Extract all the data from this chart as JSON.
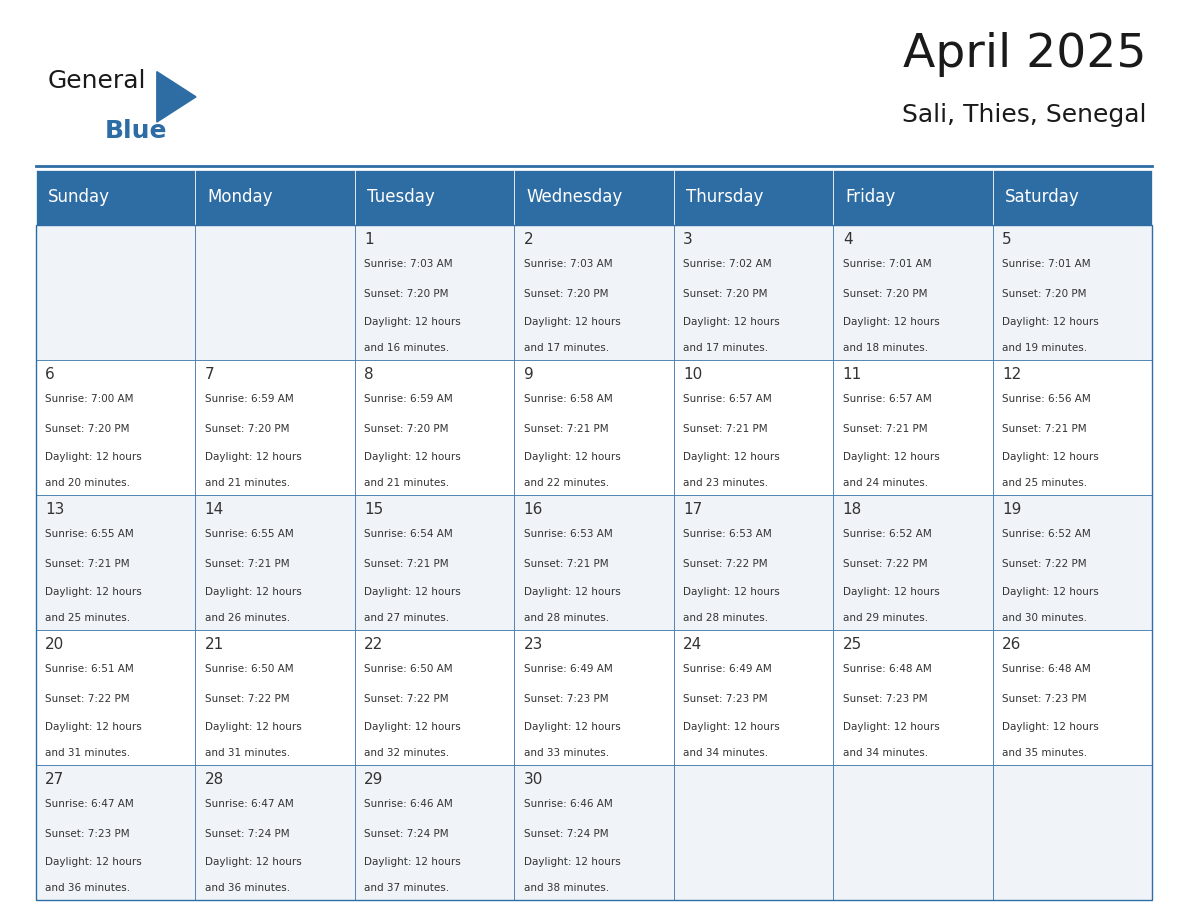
{
  "title": "April 2025",
  "subtitle": "Sali, Thies, Senegal",
  "header_bg": "#2E6DA4",
  "header_text_color": "#FFFFFF",
  "days_of_week": [
    "Sunday",
    "Monday",
    "Tuesday",
    "Wednesday",
    "Thursday",
    "Friday",
    "Saturday"
  ],
  "row_bg_odd": "#F0F4F8",
  "row_bg_even": "#FFFFFF",
  "cell_border_color": "#2E6DA4",
  "text_color": "#333333",
  "logo_general_color": "#1a1a1a",
  "logo_blue_color": "#2E6DA4",
  "calendar_data": [
    [
      {
        "day": "",
        "sunrise": "",
        "sunset": "",
        "daylight": ""
      },
      {
        "day": "",
        "sunrise": "",
        "sunset": "",
        "daylight": ""
      },
      {
        "day": "1",
        "sunrise": "7:03 AM",
        "sunset": "7:20 PM",
        "daylight": "12 hours and 16 minutes."
      },
      {
        "day": "2",
        "sunrise": "7:03 AM",
        "sunset": "7:20 PM",
        "daylight": "12 hours and 17 minutes."
      },
      {
        "day": "3",
        "sunrise": "7:02 AM",
        "sunset": "7:20 PM",
        "daylight": "12 hours and 17 minutes."
      },
      {
        "day": "4",
        "sunrise": "7:01 AM",
        "sunset": "7:20 PM",
        "daylight": "12 hours and 18 minutes."
      },
      {
        "day": "5",
        "sunrise": "7:01 AM",
        "sunset": "7:20 PM",
        "daylight": "12 hours and 19 minutes."
      }
    ],
    [
      {
        "day": "6",
        "sunrise": "7:00 AM",
        "sunset": "7:20 PM",
        "daylight": "12 hours and 20 minutes."
      },
      {
        "day": "7",
        "sunrise": "6:59 AM",
        "sunset": "7:20 PM",
        "daylight": "12 hours and 21 minutes."
      },
      {
        "day": "8",
        "sunrise": "6:59 AM",
        "sunset": "7:20 PM",
        "daylight": "12 hours and 21 minutes."
      },
      {
        "day": "9",
        "sunrise": "6:58 AM",
        "sunset": "7:21 PM",
        "daylight": "12 hours and 22 minutes."
      },
      {
        "day": "10",
        "sunrise": "6:57 AM",
        "sunset": "7:21 PM",
        "daylight": "12 hours and 23 minutes."
      },
      {
        "day": "11",
        "sunrise": "6:57 AM",
        "sunset": "7:21 PM",
        "daylight": "12 hours and 24 minutes."
      },
      {
        "day": "12",
        "sunrise": "6:56 AM",
        "sunset": "7:21 PM",
        "daylight": "12 hours and 25 minutes."
      }
    ],
    [
      {
        "day": "13",
        "sunrise": "6:55 AM",
        "sunset": "7:21 PM",
        "daylight": "12 hours and 25 minutes."
      },
      {
        "day": "14",
        "sunrise": "6:55 AM",
        "sunset": "7:21 PM",
        "daylight": "12 hours and 26 minutes."
      },
      {
        "day": "15",
        "sunrise": "6:54 AM",
        "sunset": "7:21 PM",
        "daylight": "12 hours and 27 minutes."
      },
      {
        "day": "16",
        "sunrise": "6:53 AM",
        "sunset": "7:21 PM",
        "daylight": "12 hours and 28 minutes."
      },
      {
        "day": "17",
        "sunrise": "6:53 AM",
        "sunset": "7:22 PM",
        "daylight": "12 hours and 28 minutes."
      },
      {
        "day": "18",
        "sunrise": "6:52 AM",
        "sunset": "7:22 PM",
        "daylight": "12 hours and 29 minutes."
      },
      {
        "day": "19",
        "sunrise": "6:52 AM",
        "sunset": "7:22 PM",
        "daylight": "12 hours and 30 minutes."
      }
    ],
    [
      {
        "day": "20",
        "sunrise": "6:51 AM",
        "sunset": "7:22 PM",
        "daylight": "12 hours and 31 minutes."
      },
      {
        "day": "21",
        "sunrise": "6:50 AM",
        "sunset": "7:22 PM",
        "daylight": "12 hours and 31 minutes."
      },
      {
        "day": "22",
        "sunrise": "6:50 AM",
        "sunset": "7:22 PM",
        "daylight": "12 hours and 32 minutes."
      },
      {
        "day": "23",
        "sunrise": "6:49 AM",
        "sunset": "7:23 PM",
        "daylight": "12 hours and 33 minutes."
      },
      {
        "day": "24",
        "sunrise": "6:49 AM",
        "sunset": "7:23 PM",
        "daylight": "12 hours and 34 minutes."
      },
      {
        "day": "25",
        "sunrise": "6:48 AM",
        "sunset": "7:23 PM",
        "daylight": "12 hours and 34 minutes."
      },
      {
        "day": "26",
        "sunrise": "6:48 AM",
        "sunset": "7:23 PM",
        "daylight": "12 hours and 35 minutes."
      }
    ],
    [
      {
        "day": "27",
        "sunrise": "6:47 AM",
        "sunset": "7:23 PM",
        "daylight": "12 hours and 36 minutes."
      },
      {
        "day": "28",
        "sunrise": "6:47 AM",
        "sunset": "7:24 PM",
        "daylight": "12 hours and 36 minutes."
      },
      {
        "day": "29",
        "sunrise": "6:46 AM",
        "sunset": "7:24 PM",
        "daylight": "12 hours and 37 minutes."
      },
      {
        "day": "30",
        "sunrise": "6:46 AM",
        "sunset": "7:24 PM",
        "daylight": "12 hours and 38 minutes."
      },
      {
        "day": "",
        "sunrise": "",
        "sunset": "",
        "daylight": ""
      },
      {
        "day": "",
        "sunrise": "",
        "sunset": "",
        "daylight": ""
      },
      {
        "day": "",
        "sunrise": "",
        "sunset": "",
        "daylight": ""
      }
    ]
  ]
}
